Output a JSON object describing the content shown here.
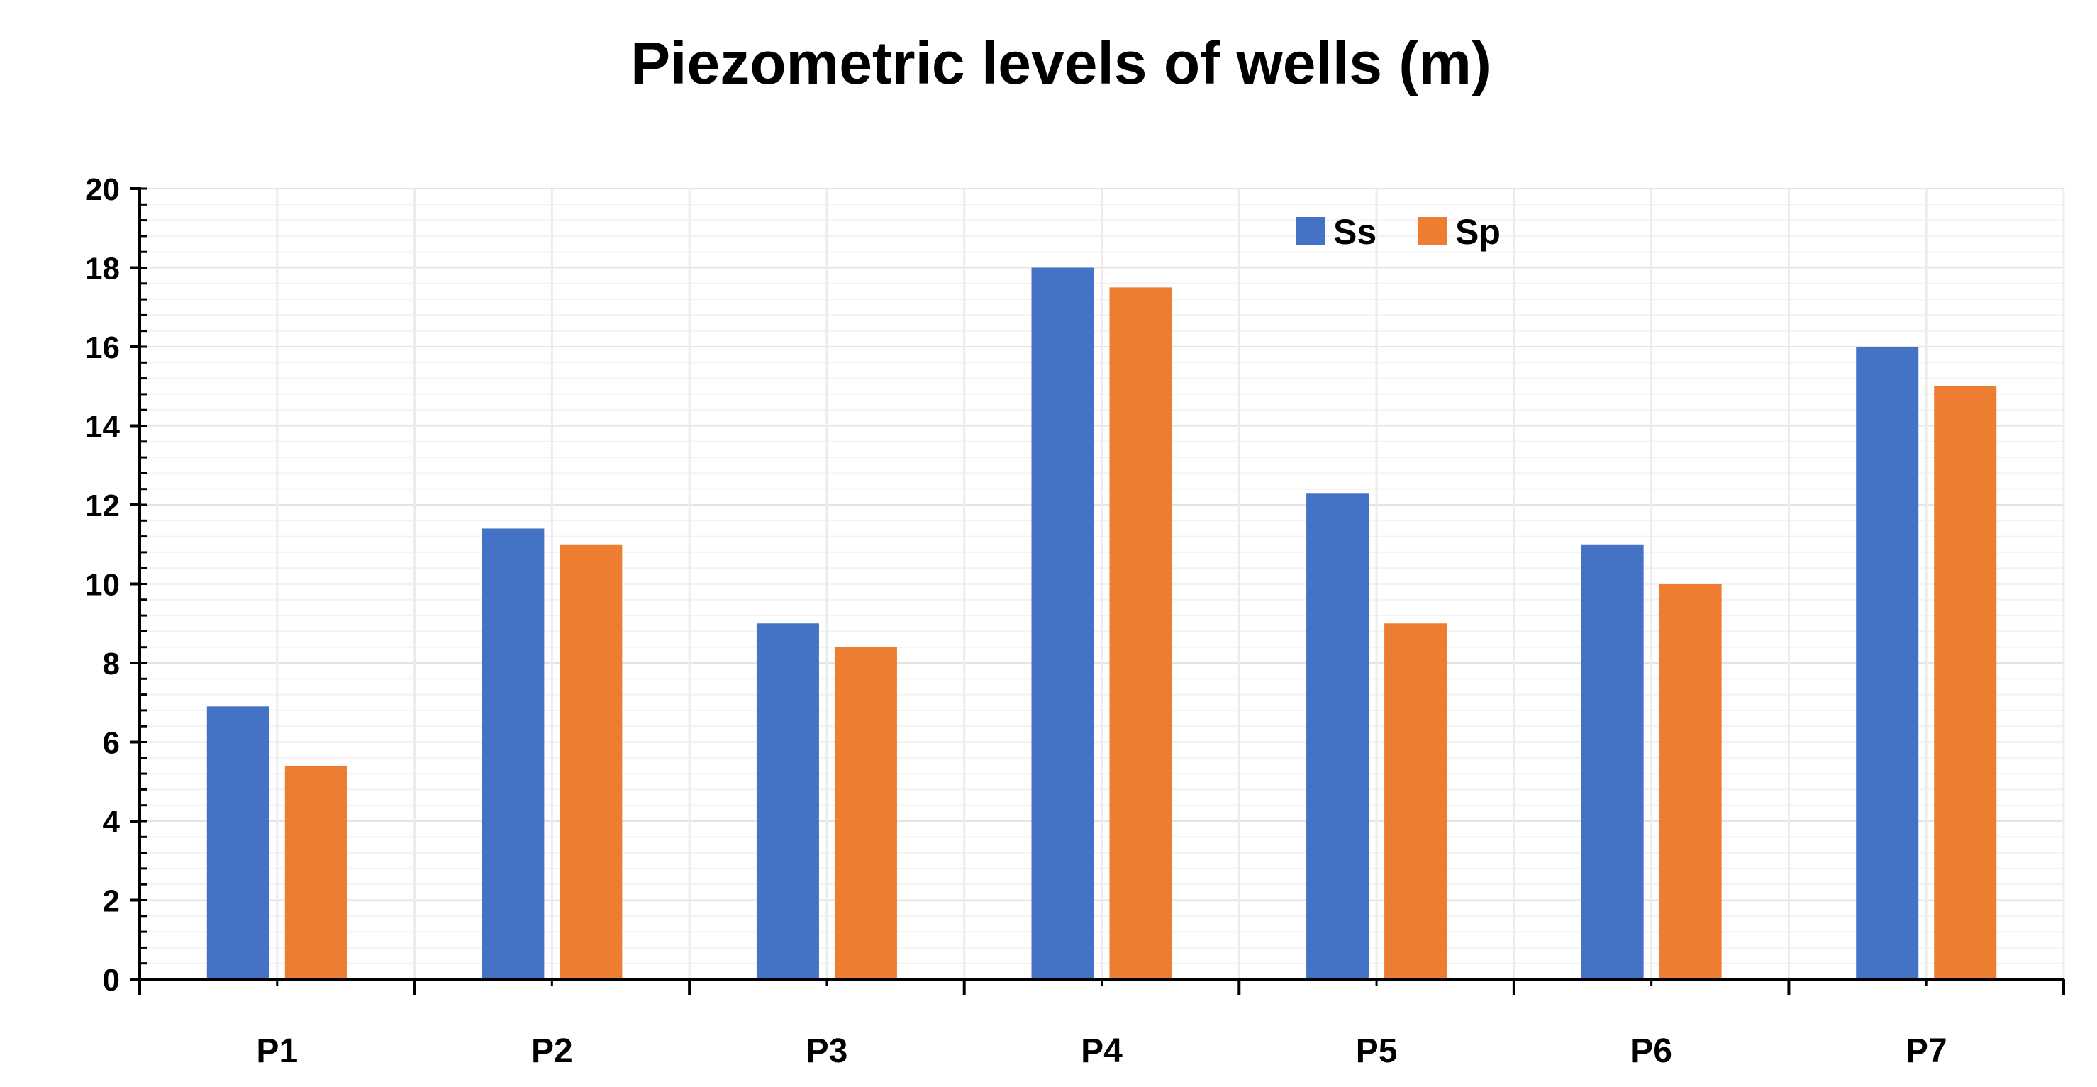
{
  "chart_data": {
    "type": "bar",
    "title": "Piezometric levels of wells (m)",
    "xlabel": "",
    "ylabel": "",
    "categories": [
      "P1",
      "P2",
      "P3",
      "P4",
      "P5",
      "P6",
      "P7"
    ],
    "series": [
      {
        "name": "Ss",
        "color": "#4472C4",
        "values": [
          6.9,
          11.4,
          9.0,
          18.0,
          12.3,
          11.0,
          16.0
        ]
      },
      {
        "name": "Sp",
        "color": "#ED7D31",
        "values": [
          5.4,
          11.0,
          8.4,
          17.5,
          9.0,
          10.0,
          15.0
        ]
      }
    ],
    "ylim": [
      0,
      20
    ],
    "yticks": [
      "0",
      "2",
      "4",
      "6",
      "8",
      "10",
      "12",
      "14",
      "16",
      "18",
      "20"
    ],
    "grid": true,
    "legend_position": "top-right"
  }
}
